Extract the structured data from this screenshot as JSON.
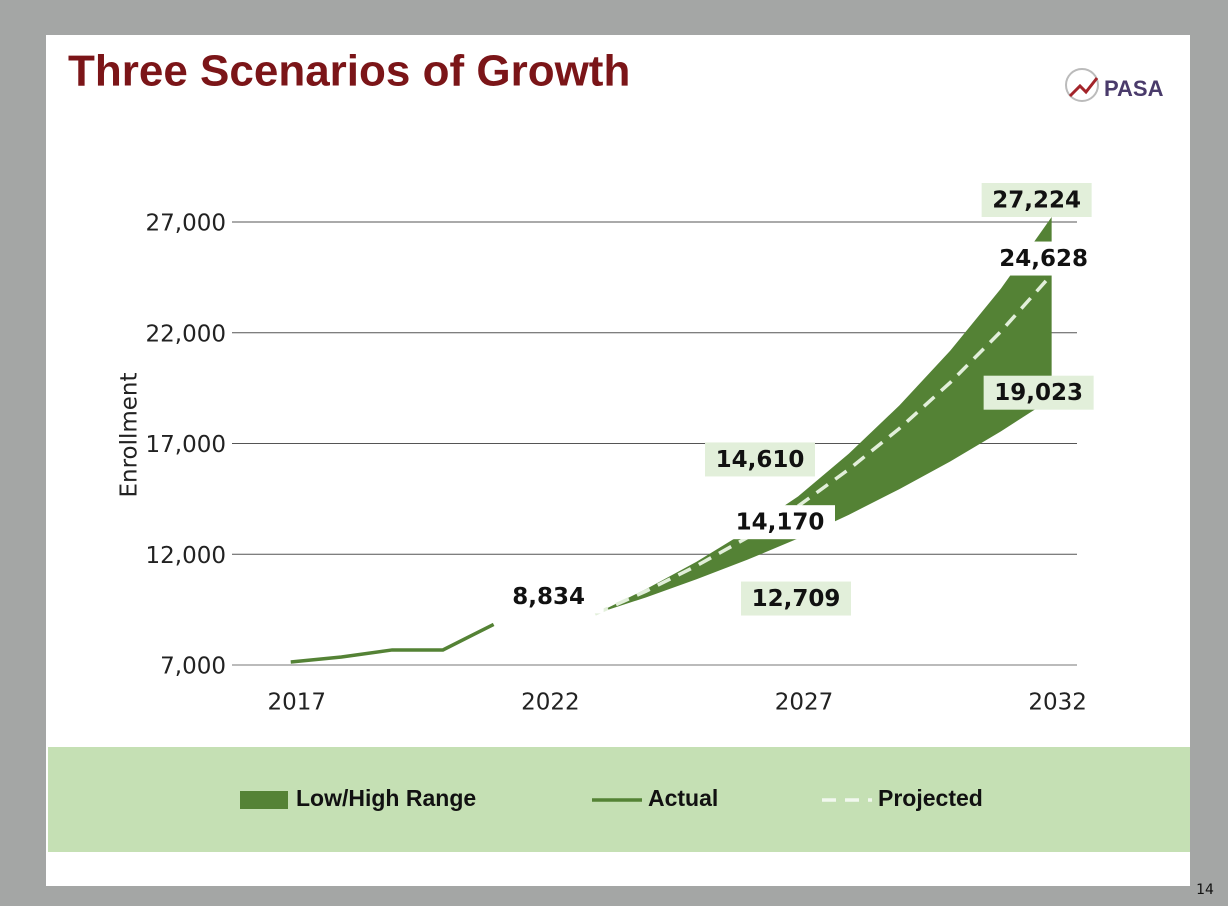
{
  "chart_data": {
    "type": "line",
    "title": "Three Scenarios of Growth",
    "logo": "PASA",
    "page_number": "14",
    "y_label": "Enrollment",
    "x": [
      2017,
      2018,
      2019,
      2020,
      2021,
      2022,
      2023,
      2024,
      2025,
      2026,
      2027,
      2028,
      2029,
      2030,
      2031,
      2032
    ],
    "xlim": [
      2016,
      2032.5
    ],
    "xticks": [
      2017,
      2022,
      2027,
      2032
    ],
    "ylim": [
      7000,
      29000
    ],
    "yticks": [
      {
        "value": 7000,
        "label": "7,000"
      },
      {
        "value": 12000,
        "label": "12,000"
      },
      {
        "value": 17000,
        "label": "17,000"
      },
      {
        "value": 22000,
        "label": "22,000"
      },
      {
        "value": 27000,
        "label": "27,000"
      }
    ],
    "grid": true,
    "series": [
      {
        "name": "Low/High Range",
        "color": "#548235",
        "low": [
          null,
          null,
          null,
          null,
          null,
          null,
          9300,
          10050,
          10870,
          11750,
          12709,
          13780,
          14940,
          16190,
          17550,
          19023
        ],
        "high": [
          null,
          null,
          null,
          null,
          null,
          null,
          9300,
          10420,
          11660,
          13060,
          14610,
          16540,
          18720,
          21190,
          23990,
          27224
        ],
        "low_labels": [
          null,
          null,
          null,
          null,
          null,
          null,
          null,
          null,
          null,
          null,
          "12,709",
          null,
          null,
          null,
          null,
          "19,023"
        ],
        "high_labels": [
          null,
          null,
          null,
          null,
          null,
          null,
          null,
          null,
          null,
          null,
          "14,610",
          null,
          null,
          null,
          null,
          "27,224"
        ]
      },
      {
        "name": "Actual",
        "color": "#548235",
        "values": [
          7135,
          7360,
          7680,
          7680,
          8834,
          null,
          null,
          null,
          null,
          null,
          null,
          null,
          null,
          null,
          null,
          null
        ],
        "value_labels": [
          null,
          null,
          null,
          null,
          "8,834",
          null,
          null,
          null,
          null,
          null,
          null,
          null,
          null,
          null,
          null,
          null
        ]
      },
      {
        "name": "Projected",
        "color": "#e2efda",
        "values": [
          null,
          null,
          null,
          null,
          null,
          null,
          9300,
          10330,
          11480,
          12750,
          14170,
          15830,
          17680,
          19750,
          22060,
          24628
        ],
        "value_labels": [
          null,
          null,
          null,
          null,
          null,
          null,
          null,
          null,
          null,
          null,
          "14,170",
          null,
          null,
          null,
          null,
          "24,628"
        ]
      }
    ]
  }
}
